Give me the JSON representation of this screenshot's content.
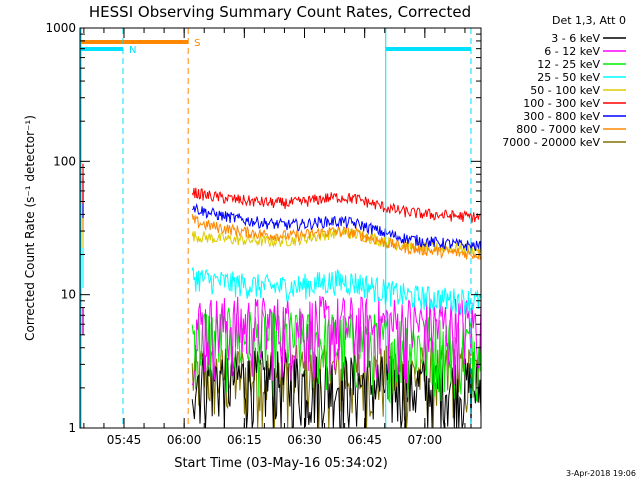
{
  "colors": {
    "background": "#ffffff",
    "axis": "#000000",
    "series": [
      "#000000",
      "#ff00ff",
      "#00ee00",
      "#00ffff",
      "#ddcc00",
      "#ff0000",
      "#0000ff",
      "#ff8800",
      "#807000"
    ],
    "night_marker": "#00e0ff",
    "saa_marker": "#ff8800"
  },
  "chart_data": {
    "type": "line",
    "title": "HESSI Observing Summary Count Rates, Corrected",
    "xlabel": "Start Time (03-May-16 05:34:02)",
    "ylabel": "Corrected Count Rate (s⁻¹ detector⁻¹)",
    "yscale": "log",
    "ylim": [
      1,
      1000
    ],
    "x_range": [
      "05:34:02",
      "07:14:00"
    ],
    "x_ticks": [
      "05:45",
      "06:00",
      "06:15",
      "06:30",
      "06:45",
      "07:00"
    ],
    "y_ticks": [
      "1",
      "10",
      "100",
      "1000"
    ],
    "legend_title": "Det 1,3, Att 0",
    "legend_position": "right",
    "series": [
      {
        "name": "3 - 6 keV",
        "color": "#000000"
      },
      {
        "name": "6 - 12 keV",
        "color": "#ff00ff"
      },
      {
        "name": "12 - 25 keV",
        "color": "#00ee00"
      },
      {
        "name": "25 - 50 keV",
        "color": "#00ffff"
      },
      {
        "name": "50 - 100 keV",
        "color": "#ddcc00"
      },
      {
        "name": "100 - 300 keV",
        "color": "#ff0000"
      },
      {
        "name": "300 - 800 keV",
        "color": "#0000ff"
      },
      {
        "name": "800 - 7000 keV",
        "color": "#ff8800"
      },
      {
        "name": "7000 - 20000 keV",
        "color": "#807000"
      }
    ],
    "bands": [
      {
        "label": "N",
        "color": "#00e0ff",
        "from": "05:34:02",
        "to": "05:44:45"
      },
      {
        "label": "S",
        "color": "#ff8800",
        "from": "05:34:02",
        "to": "06:01:00"
      },
      {
        "label": "",
        "color": "#00e0ff",
        "from": "06:50:15",
        "to": "07:11:30"
      }
    ],
    "vertical_markers": [
      {
        "time": "05:44:45",
        "color": "#00e0ff",
        "style": "dashed"
      },
      {
        "time": "06:01:00",
        "color": "#ff8800",
        "style": "dashed"
      },
      {
        "time": "06:50:15",
        "color": "#00e0ff",
        "style": "solid"
      },
      {
        "time": "07:11:30",
        "color": "#00e0ff",
        "style": "dashed"
      }
    ],
    "data_gap": [
      "05:35:00",
      "06:02:00"
    ],
    "approx_levels_after_06_02": {
      "100 - 300 keV": [
        60,
        38
      ],
      "300 - 800 keV": [
        47,
        23
      ],
      "800 - 7000 keV": [
        37,
        20
      ],
      "50 - 100 keV": [
        28,
        22
      ],
      "25 - 50 keV": [
        14,
        9
      ],
      "6 - 12 keV": [
        3.5,
        3.5
      ],
      "12 - 25 keV": [
        3,
        2.5
      ],
      "3 - 6 keV": [
        1.5,
        1.2
      ],
      "7000 - 20000 keV": [
        1.5,
        1.5
      ]
    }
  },
  "footer": {
    "date_stamp": "3-Apr-2018 19:06"
  }
}
